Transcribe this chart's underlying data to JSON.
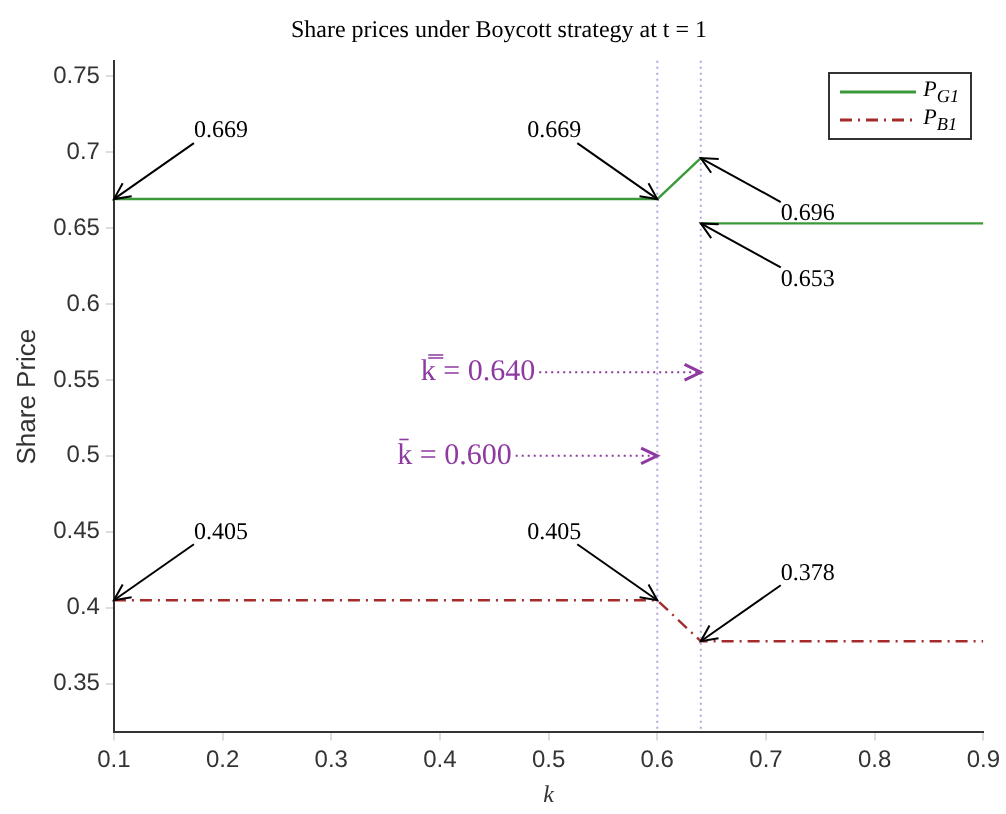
{
  "chart_data": {
    "type": "line",
    "title": "Share prices under Boycott strategy at t = 1",
    "xlabel": "k",
    "ylabel": "Share Price",
    "series": [
      {
        "name": "P$_{G1}$",
        "color": "#3a9a3a",
        "line_style": "solid",
        "x": [
          0.1,
          0.6,
          0.64
        ],
        "values": [
          0.669,
          0.669,
          0.696
        ]
      },
      {
        "color": "#3a9a3a",
        "line_style": "solid",
        "x": [
          0.64,
          0.9
        ],
        "values": [
          0.653,
          0.653
        ]
      },
      {
        "name": "P$_{B1}$",
        "color": "#a52a2a",
        "line_style": "dashed",
        "x": [
          0.1,
          0.6,
          0.64,
          0.9
        ],
        "values": [
          0.405,
          0.405,
          0.378,
          0.378
        ]
      }
    ],
    "xlim": [
      0.1,
      0.9
    ],
    "xticks": [
      0.1,
      0.2,
      0.3,
      0.4,
      0.5,
      0.6,
      0.7,
      0.8,
      0.9
    ],
    "ylim": [
      0.318,
      0.76
    ],
    "yticks": [
      0.35,
      0.4,
      0.45,
      0.5,
      0.55,
      0.6,
      0.65,
      0.7,
      0.75
    ],
    "ref_lines": [
      {
        "axis": "x",
        "value": 0.6,
        "color": "#b9a3dc",
        "line_style": "dotted"
      },
      {
        "axis": "x",
        "value": 0.64,
        "color": "#b9a3dc",
        "line_style": "dotted"
      }
    ],
    "annotations": [
      {
        "text": "0.669",
        "x": 0.1,
        "y": 0.669
      },
      {
        "text": "0.669",
        "x": 0.6,
        "y": 0.669
      },
      {
        "text": "0.696",
        "x": 0.64,
        "y": 0.696
      },
      {
        "text": "0.653",
        "x": 0.64,
        "y": 0.653
      },
      {
        "text": "0.405",
        "x": 0.1,
        "y": 0.405
      },
      {
        "text": "0.405",
        "x": 0.6,
        "y": 0.405
      },
      {
        "text": "0.378",
        "x": 0.64,
        "y": 0.378
      },
      {
        "text": "k̿ = 0.640",
        "x": 0.64,
        "y": 0.555
      },
      {
        "text": "k̄ = 0.600",
        "x": 0.6,
        "y": 0.5
      }
    ],
    "legend": "top right",
    "grid": false,
    "marker": "none"
  }
}
